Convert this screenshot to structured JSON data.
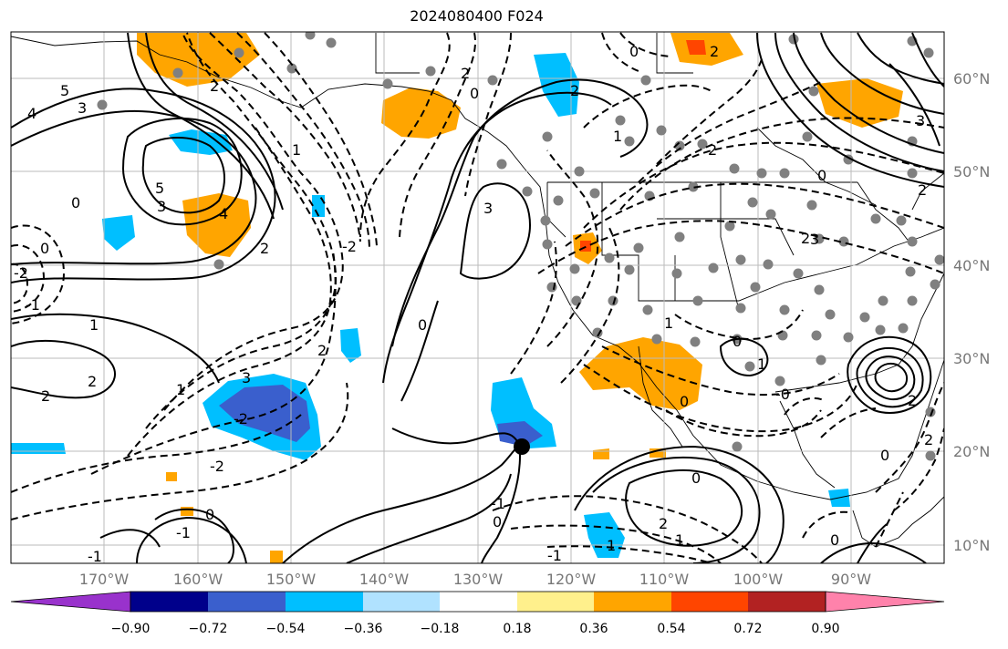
{
  "title": "2024080400 F024",
  "map": {
    "lon_range": [
      -180,
      -80
    ],
    "lat_range": [
      8,
      65
    ],
    "lon_labels": [
      "170°W",
      "160°W",
      "150°W",
      "140°W",
      "130°W",
      "120°W",
      "110°W",
      "100°W",
      "90°W"
    ],
    "lat_labels": [
      "60°N",
      "50°N",
      "40°N",
      "30°N",
      "20°N",
      "10°N"
    ],
    "grid": true,
    "contour_labels": [
      "5",
      "3",
      "4",
      "5",
      "4",
      "0",
      "3",
      "2",
      "0",
      "-1",
      "1",
      "2",
      "2",
      "3",
      "1",
      "-2",
      "-2",
      "-1",
      "0",
      "2",
      "0",
      "-2",
      "2",
      "0",
      "1",
      "3",
      "2",
      "-1",
      "0",
      "2",
      "0",
      "-1",
      "2",
      "1",
      "2",
      "1",
      "2",
      "3",
      "0",
      "2",
      "0",
      "1",
      "2",
      "2",
      "1",
      "0",
      "-1",
      "0",
      "-0",
      "0",
      "3",
      "-2",
      "0",
      "1",
      "2"
    ],
    "marker": {
      "lon": -125.5,
      "lat": 20.5
    }
  },
  "colorbar": {
    "colors": [
      "#9932cc",
      "#00008b",
      "#3a5fcd",
      "#00bfff",
      "#b0e2ff",
      "#ffffff",
      "#fff08c",
      "#ffa500",
      "#ff4500",
      "#b22222",
      "#ff82ab"
    ],
    "ticks": [
      "−0.90",
      "−0.72",
      "−0.54",
      "−0.36",
      "−0.18",
      "0.18",
      "0.36",
      "0.54",
      "0.72",
      "0.90"
    ]
  }
}
